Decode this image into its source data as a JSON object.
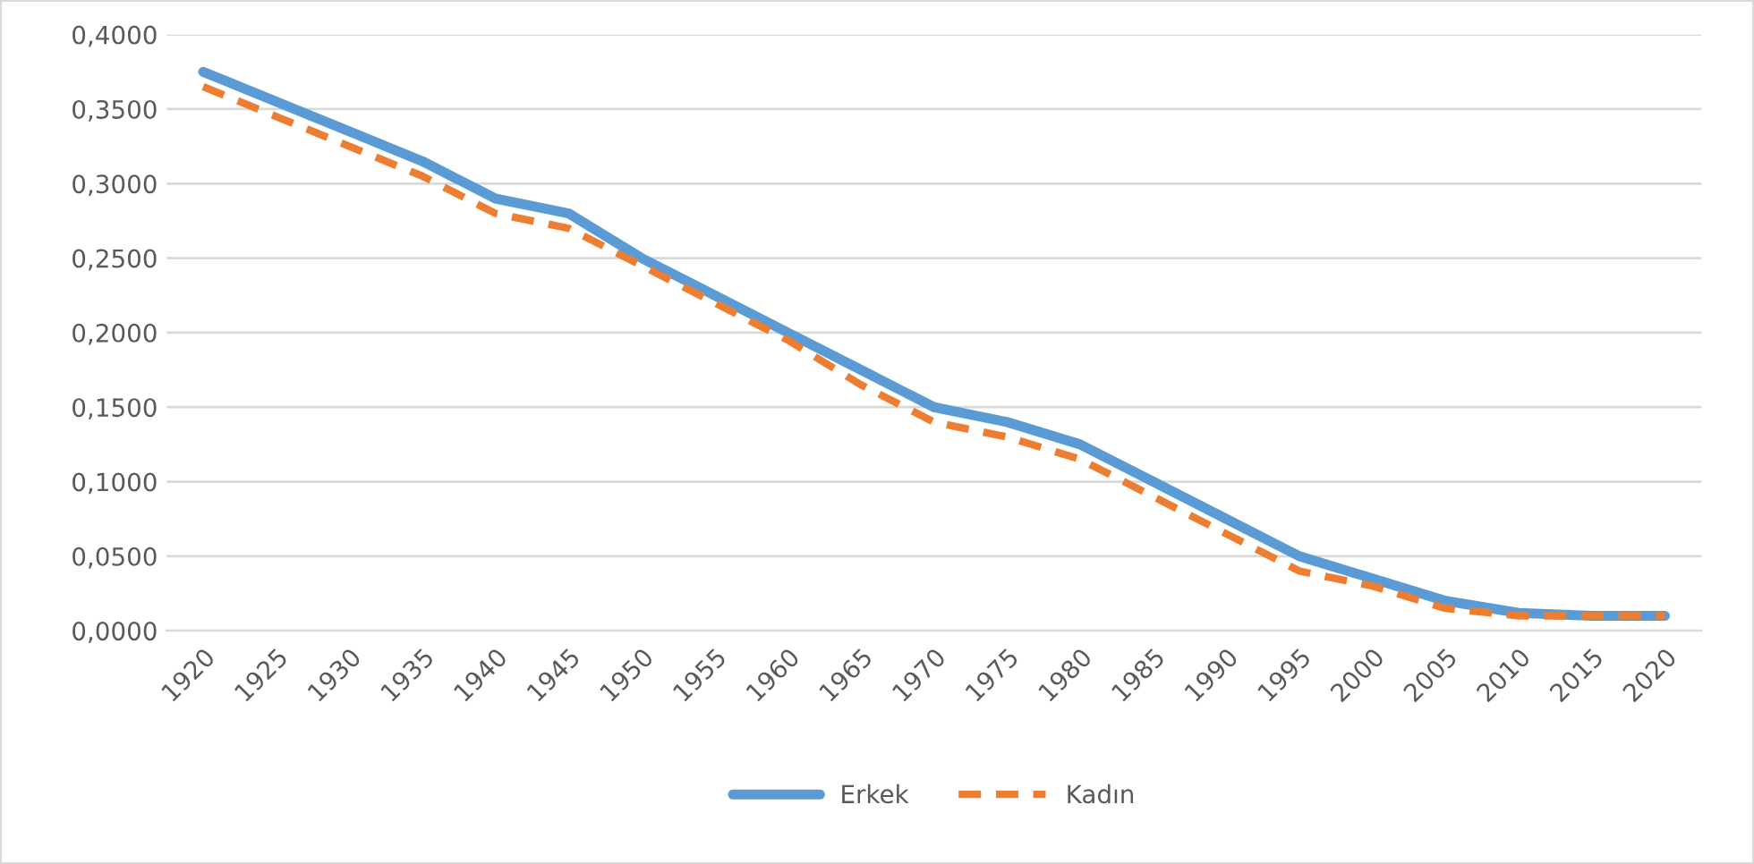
{
  "chart_data": {
    "type": "line",
    "categories": [
      "1920",
      "1925",
      "1930",
      "1935",
      "1940",
      "1945",
      "1950",
      "1955",
      "1960",
      "1965",
      "1970",
      "1975",
      "1980",
      "1985",
      "1990",
      "1995",
      "2000",
      "2005",
      "2010",
      "2015",
      "2020"
    ],
    "series": [
      {
        "name": "Erkek",
        "color": "#5b9bd5",
        "line_style": "solid",
        "values": [
          0.375,
          0.355,
          0.335,
          0.315,
          0.29,
          0.28,
          0.25,
          0.225,
          0.2,
          0.175,
          0.15,
          0.14,
          0.125,
          0.1,
          0.075,
          0.05,
          0.035,
          0.02,
          0.012,
          0.01,
          0.01
        ]
      },
      {
        "name": "Kadın",
        "color": "#ed7d31",
        "line_style": "dashed",
        "values": [
          0.365,
          0.345,
          0.325,
          0.305,
          0.28,
          0.27,
          0.245,
          0.22,
          0.195,
          0.165,
          0.14,
          0.13,
          0.115,
          0.09,
          0.065,
          0.04,
          0.03,
          0.015,
          0.01,
          0.01,
          0.01
        ]
      }
    ],
    "ylim": [
      0,
      0.4
    ],
    "yticks": [
      {
        "value": 0,
        "label": "0,0000"
      },
      {
        "value": 0.05,
        "label": "0,0500"
      },
      {
        "value": 0.1,
        "label": "0,1000"
      },
      {
        "value": 0.15,
        "label": "0,1500"
      },
      {
        "value": 0.2,
        "label": "0,2000"
      },
      {
        "value": 0.25,
        "label": "0,2500"
      },
      {
        "value": 0.3,
        "label": "0,3000"
      },
      {
        "value": 0.35,
        "label": "0,3500"
      },
      {
        "value": 0.4,
        "label": "0,4000"
      }
    ],
    "grid": "y",
    "legend": "bottom",
    "marker": "none"
  }
}
